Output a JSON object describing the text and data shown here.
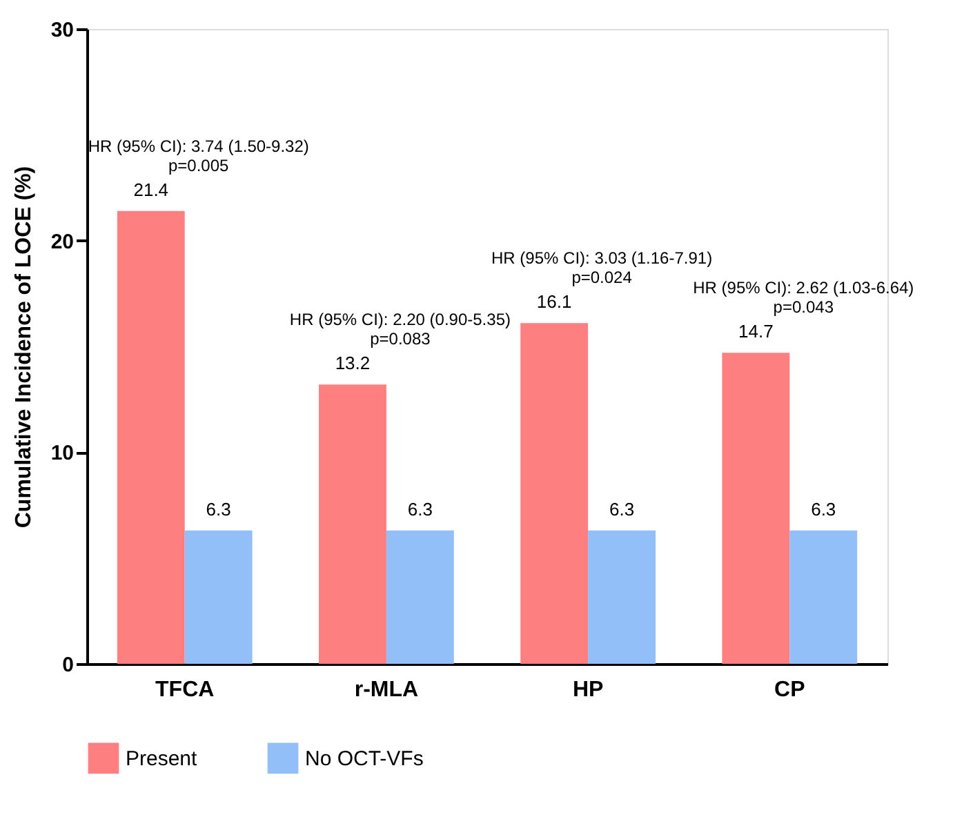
{
  "chart_data": {
    "type": "bar",
    "ylabel": "Cumulative Incidence of LOCE (%)",
    "categories": [
      "TFCA",
      "r-MLA",
      "HP",
      "CP"
    ],
    "series": [
      {
        "name": "Present",
        "color": "#fe7f7f",
        "values": [
          21.4,
          13.2,
          16.1,
          14.7
        ]
      },
      {
        "name": "No OCT-VFs",
        "color": "#92bff8",
        "values": [
          6.3,
          6.3,
          6.3,
          6.3
        ]
      }
    ],
    "ylim": [
      0,
      30
    ],
    "yticks": [
      0,
      10,
      20,
      30
    ],
    "grid": false,
    "legend": "bottom",
    "data_labels": true,
    "annotations": [
      "HR (95% CI): 3.74 (1.50-9.32)\np=0.005",
      "HR (95% CI): 2.20 (0.90-5.35)\np=0.083",
      "HR (95% CI): 3.03 (1.16-7.91)\np=0.024",
      "HR (95% CI): 2.62 (1.03-6.64)\np=0.043"
    ]
  }
}
